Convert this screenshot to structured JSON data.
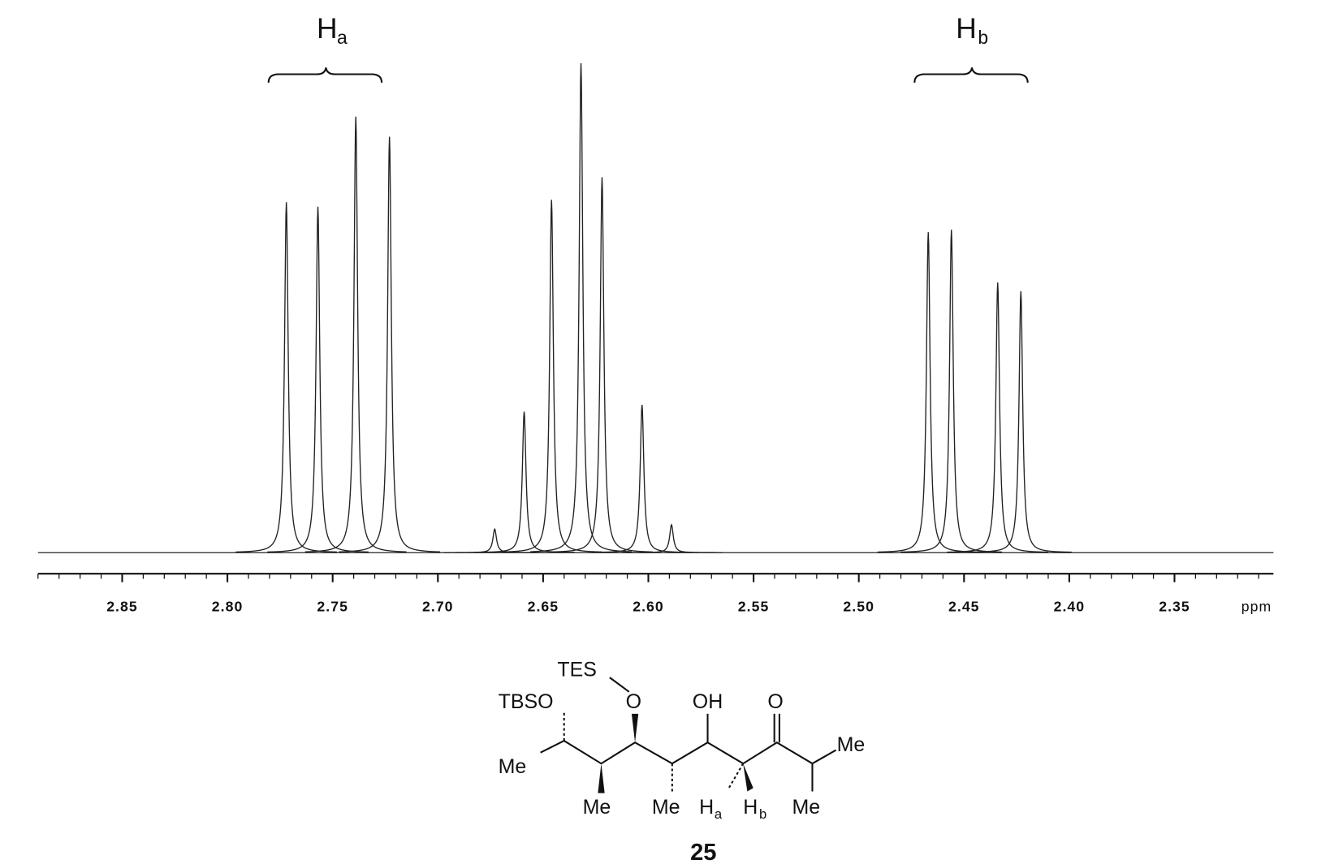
{
  "chart_data": {
    "type": "spectrum",
    "x_label": "ppm",
    "xlim": [
      2.89,
      2.303
    ],
    "xticks": [
      2.85,
      {
        "value": 2.8,
        "label": "2.80"
      },
      2.75,
      {
        "value": 2.7,
        "label": "2.70"
      },
      2.65,
      {
        "value": 2.6,
        "label": "2.60"
      },
      2.55,
      {
        "value": 2.5,
        "label": "2.50"
      },
      2.45,
      {
        "value": 2.4,
        "label": "2.40"
      },
      2.35
    ],
    "ylim": [
      0,
      100
    ],
    "color": "#222222",
    "x": [
      2.772,
      2.757,
      2.739,
      2.723,
      2.673,
      2.659,
      2.646,
      2.632,
      2.622,
      2.603,
      2.589,
      2.467,
      2.456,
      2.434,
      2.423
    ],
    "values": [
      71.6,
      70.7,
      89.1,
      85.0,
      4.8,
      28.8,
      72.1,
      100,
      76.7,
      30.2,
      5.7,
      65.5,
      66.0,
      55.2,
      53.4
    ],
    "annotations": [
      {
        "text": "H",
        "subscript": "a"
      },
      {
        "text": "H",
        "subscript": "b"
      }
    ]
  },
  "structure": {
    "compound": "25",
    "groups": [
      "TES",
      "TBSO",
      "O",
      "OH",
      "O",
      "Me",
      "Me",
      "Me",
      "Me",
      "Me"
    ],
    "ha": {
      "text": "H",
      "subscript": "a"
    },
    "hb": {
      "text": "H",
      "subscript": "b"
    }
  }
}
